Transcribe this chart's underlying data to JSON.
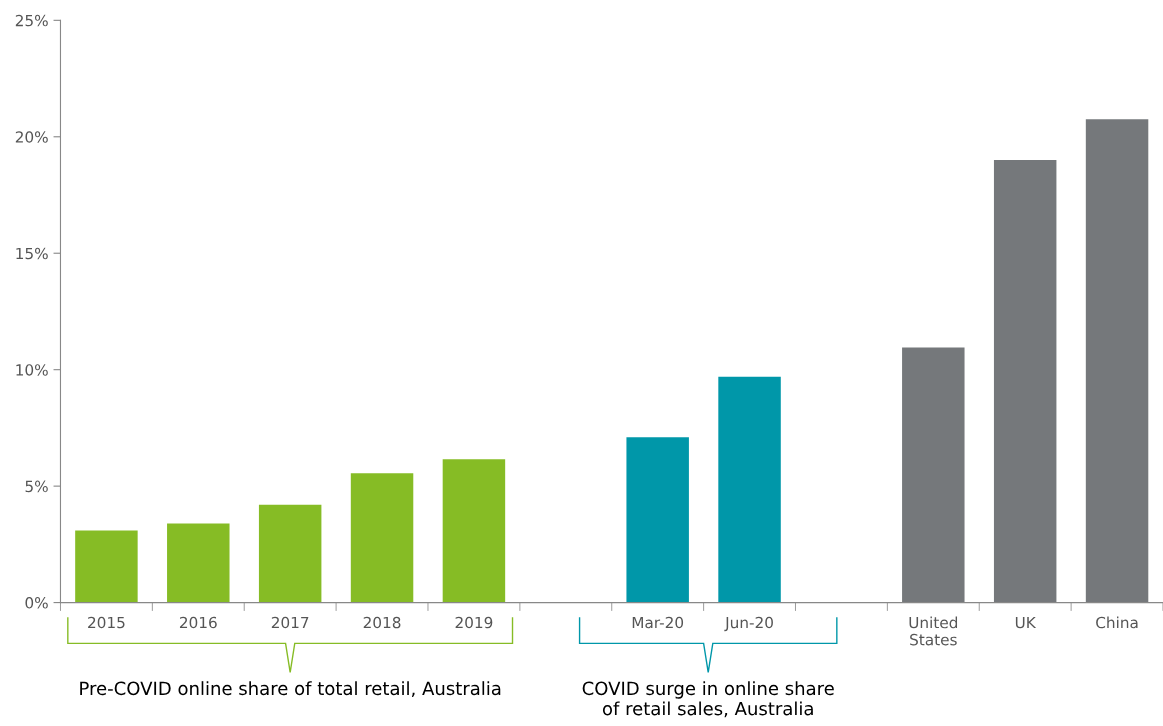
{
  "chart_data": {
    "type": "bar",
    "categories": [
      "2015",
      "2016",
      "2017",
      "2018",
      "2019",
      null,
      "Mar-20",
      "Jun-20",
      null,
      "United States",
      "UK",
      "China"
    ],
    "values": [
      3.1,
      3.4,
      4.2,
      5.55,
      6.15,
      null,
      7.1,
      9.7,
      null,
      10.95,
      19.0,
      20.75
    ],
    "colors": [
      "#86bc25",
      "#86bc25",
      "#86bc25",
      "#86bc25",
      "#86bc25",
      null,
      "#0097a9",
      "#0097a9",
      null,
      "#75787b",
      "#75787b",
      "#75787b"
    ],
    "ylim": [
      0,
      25
    ],
    "yticks": [
      {
        "value": 0,
        "label": "0%"
      },
      {
        "value": 5,
        "label": "5%"
      },
      {
        "value": 10,
        "label": "10%"
      },
      {
        "value": 15,
        "label": "15%"
      },
      {
        "value": 20,
        "label": "20%"
      },
      {
        "value": 25,
        "label": "25%"
      }
    ],
    "grid": false,
    "annotations": [
      "Pre-COVID online share of total retail, Australia",
      "COVID surge in online share\nof retail sales, Australia"
    ]
  }
}
